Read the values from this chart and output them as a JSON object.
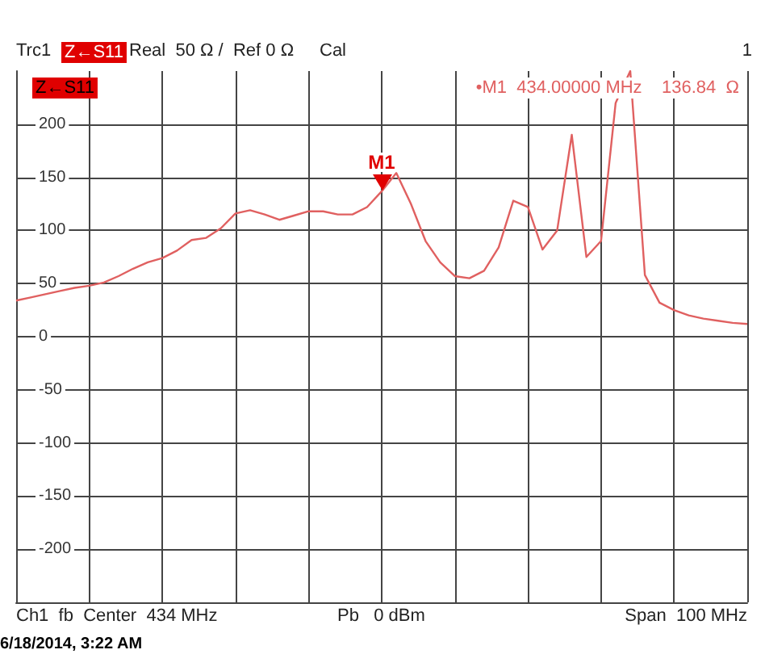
{
  "chart_data": {
    "type": "line",
    "categories": [
      null,
      null,
      null,
      null,
      null,
      null,
      null,
      null,
      null,
      null,
      null,
      null,
      null,
      null,
      null,
      null,
      null,
      null,
      null,
      null,
      null,
      null,
      null,
      null,
      null,
      null,
      null,
      null,
      null,
      null,
      null,
      null,
      null,
      null,
      null,
      null,
      null,
      null,
      null,
      null,
      null,
      null,
      null,
      null,
      null,
      null,
      null,
      null,
      null,
      null,
      null
    ],
    "series": [
      {
        "color": "#e06060",
        "values": [
          34,
          37,
          40,
          43,
          46,
          48,
          51,
          57,
          64,
          70,
          74,
          81,
          91,
          93,
          102,
          116,
          119,
          115,
          110,
          114,
          118,
          118,
          115,
          115,
          122,
          136.84,
          154,
          125,
          90,
          70,
          57,
          55,
          62,
          84,
          128,
          122,
          82,
          100,
          190,
          75,
          90,
          220,
          250,
          58,
          32,
          25,
          20,
          17,
          15,
          13,
          12
        ]
      }
    ],
    "ylim": [
      -250,
      250
    ],
    "yticks": [
      -200,
      -150,
      -100,
      -50,
      0,
      50,
      100,
      150,
      200
    ],
    "tick_labels": "y",
    "grid": true,
    "line_style": "solid",
    "annotations": [
      {
        "text": "M1",
        "y": 136.84
      },
      "Trc1",
      "Z←S11",
      "Real  50 Ω /  Ref 0 Ω",
      "Cal",
      "1",
      "Z←S11",
      "•M1  434.00000 MHz    136.84  Ω",
      "Ch1  fb  Center  434 MHz",
      "Pb   0 dBm",
      "Span  100 MHz",
      "6/18/2014, 3:22 AM"
    ]
  }
}
